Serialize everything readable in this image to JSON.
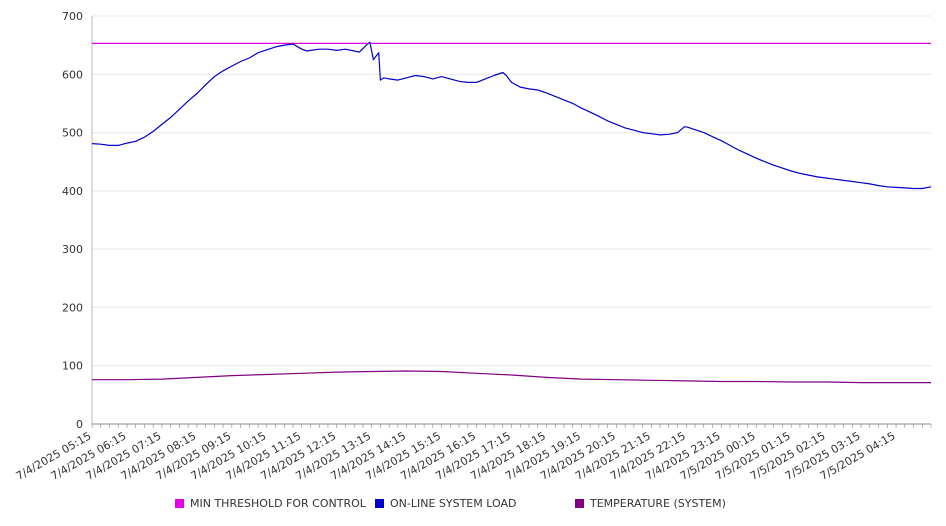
{
  "chart_data": {
    "type": "line",
    "title": "",
    "xlabel": "",
    "ylabel": "",
    "ylim": [
      0,
      700
    ],
    "y_ticks": [
      0,
      100,
      200,
      300,
      400,
      500,
      600,
      700
    ],
    "grid": true,
    "legend_position": "bottom",
    "x_tick_labels": [
      "7/4/2025 05:15",
      "7/4/2025 06:15",
      "7/4/2025 07:15",
      "7/4/2025 08:15",
      "7/4/2025 09:15",
      "7/4/2025 10:15",
      "7/4/2025 11:15",
      "7/4/2025 12:15",
      "7/4/2025 13:15",
      "7/4/2025 14:15",
      "7/4/2025 15:15",
      "7/4/2025 16:15",
      "7/4/2025 17:15",
      "7/4/2025 18:15",
      "7/4/2025 19:15",
      "7/4/2025 20:15",
      "7/4/2025 21:15",
      "7/4/2025 22:15",
      "7/4/2025 23:15",
      "7/5/2025 00:15",
      "7/5/2025 01:15",
      "7/5/2025 02:15",
      "7/5/2025 03:15",
      "7/5/2025 04:15"
    ],
    "x_hours": [
      5.25,
      29.25
    ],
    "series": [
      {
        "name": "MIN THRESHOLD FOR CONTROL",
        "color": "#e600e6",
        "x": [
          5.25,
          29.25
        ],
        "values": [
          653,
          653
        ]
      },
      {
        "name": "ON-LINE SYSTEM LOAD",
        "color": "#0000cc",
        "x": [
          5.25,
          5.5,
          5.75,
          6.0,
          6.25,
          6.5,
          6.75,
          7.0,
          7.25,
          7.5,
          7.75,
          8.0,
          8.25,
          8.5,
          8.75,
          9.0,
          9.25,
          9.5,
          9.75,
          10.0,
          10.25,
          10.5,
          10.75,
          11.0,
          11.25,
          11.4,
          11.5,
          11.75,
          12.0,
          12.25,
          12.5,
          12.75,
          12.9,
          13.1,
          13.2,
          13.3,
          13.45,
          13.5,
          13.6,
          13.75,
          14.0,
          14.25,
          14.5,
          14.75,
          15.0,
          15.25,
          15.5,
          15.75,
          16.0,
          16.25,
          16.5,
          16.75,
          17.0,
          17.1,
          17.25,
          17.5,
          17.75,
          18.0,
          18.25,
          18.5,
          18.75,
          19.0,
          19.25,
          19.5,
          19.75,
          20.0,
          20.25,
          20.5,
          20.75,
          21.0,
          21.25,
          21.5,
          21.75,
          22.0,
          22.2,
          22.3,
          22.5,
          22.75,
          23.0,
          23.25,
          23.5,
          23.75,
          24.0,
          24.25,
          24.5,
          24.75,
          25.0,
          25.25,
          25.5,
          25.75,
          26.0,
          26.25,
          26.5,
          26.75,
          27.0,
          27.25,
          27.5,
          27.75,
          28.0,
          28.25,
          28.5,
          28.75,
          29.0,
          29.25
        ],
        "values": [
          481,
          480,
          478,
          478,
          482,
          485,
          492,
          502,
          514,
          526,
          540,
          554,
          567,
          582,
          596,
          606,
          614,
          622,
          628,
          637,
          642,
          647,
          650,
          652,
          643,
          640,
          641,
          643,
          643,
          641,
          643,
          640,
          638,
          650,
          655,
          625,
          637,
          590,
          594,
          592,
          590,
          594,
          598,
          596,
          592,
          596,
          592,
          588,
          586,
          586,
          592,
          598,
          603,
          598,
          586,
          578,
          575,
          573,
          568,
          562,
          556,
          550,
          542,
          535,
          528,
          520,
          514,
          508,
          504,
          500,
          498,
          496,
          497,
          500,
          510,
          509,
          505,
          500,
          493,
          486,
          478,
          470,
          463,
          456,
          450,
          444,
          439,
          434,
          430,
          427,
          424,
          422,
          420,
          418,
          416,
          414,
          412,
          409,
          407,
          406,
          405,
          404,
          404,
          407
        ]
      },
      {
        "name": "TEMPERATURE (SYSTEM)",
        "color": "#800080",
        "x": [
          5.25,
          6.25,
          7.25,
          8.25,
          9.25,
          10.25,
          11.25,
          12.25,
          13.25,
          14.25,
          15.25,
          16.25,
          17.25,
          18.25,
          19.25,
          20.25,
          21.25,
          22.25,
          23.25,
          24.25,
          25.25,
          26.25,
          27.25,
          28.25,
          29.25
        ],
        "values": [
          76,
          76,
          77,
          80,
          83,
          85,
          87,
          89,
          90,
          91,
          90,
          87,
          84,
          80,
          77,
          76,
          75,
          74,
          73,
          73,
          72,
          72,
          71,
          71,
          71
        ]
      }
    ]
  }
}
